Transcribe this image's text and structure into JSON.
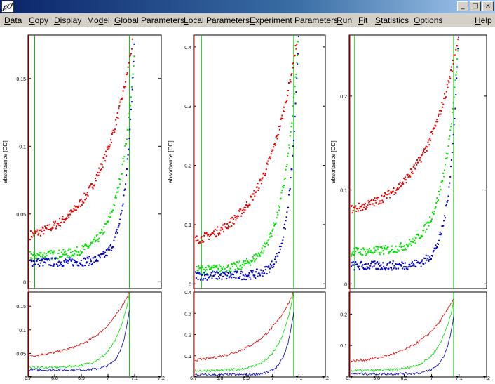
{
  "window": {
    "minimize_glyph": "_",
    "maximize_glyph": "□",
    "close_glyph": "×"
  },
  "menubar": {
    "items": [
      {
        "label": "Data",
        "underline": "D"
      },
      {
        "label": "Copy",
        "underline": "C"
      },
      {
        "label": "Display",
        "underline": "D"
      },
      {
        "label": "Model",
        "underline": "d"
      },
      {
        "label": "Global Parameters",
        "underline": "G"
      },
      {
        "label": "Local Parameters",
        "underline": "L"
      },
      {
        "label": "Experiment Parameters",
        "underline": "E"
      },
      {
        "label": "Run",
        "underline": "R"
      },
      {
        "label": "Fit",
        "underline": "F"
      },
      {
        "label": "Statistics",
        "underline": "S"
      },
      {
        "label": "Options",
        "underline": "O"
      },
      {
        "label": "Help",
        "underline": "H"
      }
    ]
  },
  "colors": {
    "series": [
      "#e00000",
      "#00e000",
      "#0000c0"
    ],
    "boundary_left": "#e00000",
    "boundary_green": "#00c000"
  },
  "chart_data": [
    {
      "type": "scatter",
      "ylabel": "absorbance [OD]",
      "xlim": [
        6.7,
        7.2
      ],
      "ylim": [
        -0.005,
        0.182
      ],
      "yticks": [
        {
          "v": 0,
          "label": "0"
        },
        {
          "v": 0.05,
          "label": "0.05"
        },
        {
          "v": 0.1,
          "label": "0.1"
        },
        {
          "v": 0.15,
          "label": "0.15"
        }
      ],
      "meniscus": 6.725,
      "bottom": 7.08,
      "series": [
        {
          "y_start": 0.035,
          "y_end": 0.185,
          "k": 3.2
        },
        {
          "y_start": 0.02,
          "y_end": 0.165,
          "k": 7
        },
        {
          "y_start": 0.015,
          "y_end": 0.175,
          "k": 12
        }
      ],
      "residuals": {
        "xticks": [
          {
            "v": 6.7,
            "label": "6.7"
          },
          {
            "v": 6.8,
            "label": "6.8"
          },
          {
            "v": 6.9,
            "label": "6.9"
          },
          {
            "v": 7,
            "label": "7"
          },
          {
            "v": 7.1,
            "label": "7.1"
          },
          {
            "v": 7.2,
            "label": "7.2"
          }
        ],
        "ylim": [
          0,
          0.18
        ],
        "yticks": [
          {
            "v": 0.05,
            "label": "0.05"
          },
          {
            "v": 0.1,
            "label": "0.1"
          },
          {
            "v": 0.15,
            "label": "0.15"
          }
        ],
        "series": [
          {
            "y_start": 0.045,
            "y_end": 0.18,
            "k": 3.2
          },
          {
            "y_start": 0.02,
            "y_end": 0.175,
            "k": 7
          },
          {
            "y_start": 0.015,
            "y_end": 0.14,
            "k": 12
          }
        ]
      }
    },
    {
      "type": "scatter",
      "ylabel": "absorbance [OD]",
      "xlim": [
        6.7,
        7.2
      ],
      "ylim": [
        -0.008,
        0.42
      ],
      "yticks": [
        {
          "v": 0,
          "label": "0"
        },
        {
          "v": 0.1,
          "label": "0.1"
        },
        {
          "v": 0.2,
          "label": "0.2"
        },
        {
          "v": 0.3,
          "label": "0.3"
        },
        {
          "v": 0.4,
          "label": "0.4"
        }
      ],
      "meniscus": 6.73,
      "bottom": 7.08,
      "series": [
        {
          "y_start": 0.075,
          "y_end": 0.43,
          "k": 3.2
        },
        {
          "y_start": 0.025,
          "y_end": 0.42,
          "k": 7
        },
        {
          "y_start": 0.015,
          "y_end": 0.42,
          "k": 12
        }
      ],
      "residuals": {
        "xticks": [
          {
            "v": 6.7,
            "label": "6.7"
          },
          {
            "v": 6.8,
            "label": "6.8"
          },
          {
            "v": 6.9,
            "label": "6.9"
          },
          {
            "v": 7,
            "label": "7"
          },
          {
            "v": 7.1,
            "label": "7.1"
          },
          {
            "v": 7.2,
            "label": "7.2"
          }
        ],
        "ylim": [
          0,
          0.4
        ],
        "yticks": [
          {
            "v": 0.1,
            "label": "0.1"
          },
          {
            "v": 0.2,
            "label": "0.2"
          },
          {
            "v": 0.3,
            "label": "0.3"
          },
          {
            "v": 0.4,
            "label": "0.4"
          }
        ],
        "series": [
          {
            "y_start": 0.08,
            "y_end": 0.4,
            "k": 3.2
          },
          {
            "y_start": 0.03,
            "y_end": 0.4,
            "k": 7
          },
          {
            "y_start": 0.01,
            "y_end": 0.31,
            "k": 12
          }
        ]
      }
    },
    {
      "type": "scatter",
      "ylabel": "absorbance [OD]",
      "xlim": [
        6.7,
        7.2
      ],
      "ylim": [
        -0.005,
        0.265
      ],
      "yticks": [
        {
          "v": 0,
          "label": "0"
        },
        {
          "v": 0.1,
          "label": "0.1"
        },
        {
          "v": 0.2,
          "label": "0.2"
        }
      ],
      "meniscus": 6.72,
      "bottom": 7.08,
      "series": [
        {
          "y_start": 0.08,
          "y_end": 0.265,
          "k": 3.2
        },
        {
          "y_start": 0.035,
          "y_end": 0.255,
          "k": 7
        },
        {
          "y_start": 0.02,
          "y_end": 0.265,
          "k": 12
        }
      ],
      "residuals": {
        "xticks": [
          {
            "v": 6.7,
            "label": "6.7"
          },
          {
            "v": 6.8,
            "label": "6.8"
          },
          {
            "v": 6.9,
            "label": "6.9"
          },
          {
            "v": 7,
            "label": "7"
          },
          {
            "v": 7.1,
            "label": "7.1"
          },
          {
            "v": 7.2,
            "label": "7.2"
          }
        ],
        "ylim": [
          0,
          0.27
        ],
        "yticks": [
          {
            "v": 0.1,
            "label": "0.1"
          },
          {
            "v": 0.2,
            "label": "0.2"
          }
        ],
        "series": [
          {
            "y_start": 0.05,
            "y_end": 0.25,
            "k": 3.2
          },
          {
            "y_start": 0.02,
            "y_end": 0.24,
            "k": 7
          },
          {
            "y_start": 0.01,
            "y_end": 0.19,
            "k": 12
          }
        ]
      }
    }
  ]
}
